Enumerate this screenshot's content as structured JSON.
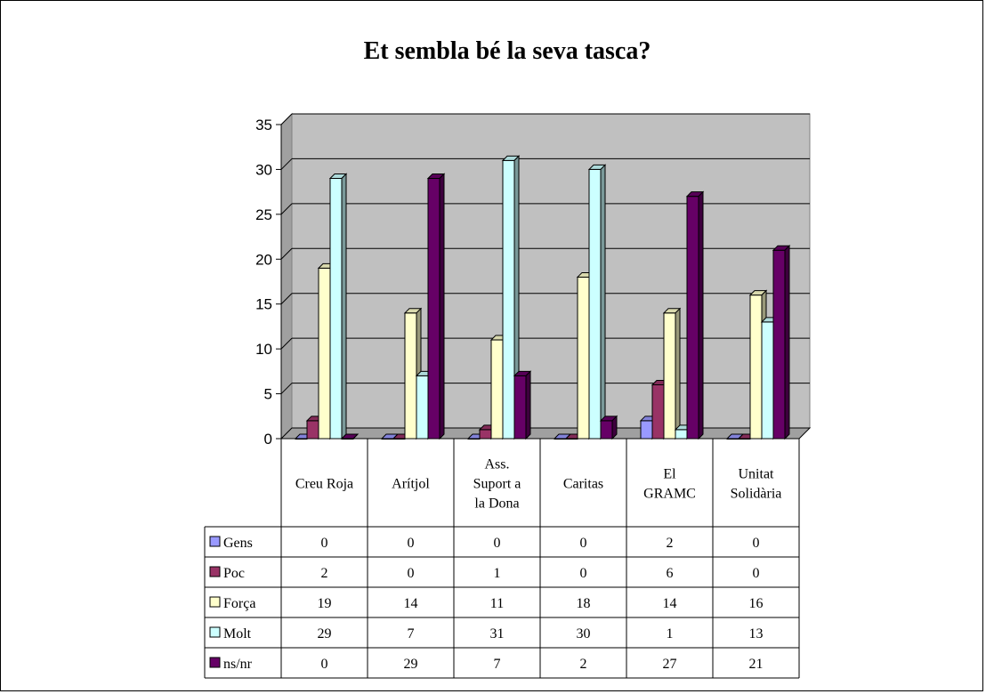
{
  "chart_data": {
    "type": "bar",
    "title": "Et sembla bé la seva tasca?",
    "categories": [
      "Creu Roja",
      "Arítjol",
      "Ass. Suport a la Dona",
      "Caritas",
      "El GRAMC",
      "Unitat Solidària"
    ],
    "category_lines": [
      [
        "Creu Roja"
      ],
      [
        "Arítjol"
      ],
      [
        "Ass.",
        "Suport a",
        "la Dona"
      ],
      [
        "Caritas"
      ],
      [
        "El",
        "GRAMC"
      ],
      [
        "Unitat",
        "Solidària"
      ]
    ],
    "series": [
      {
        "name": "Gens",
        "color": "#9999ff",
        "values": [
          0,
          0,
          0,
          0,
          2,
          0
        ]
      },
      {
        "name": "Poc",
        "color": "#993366",
        "values": [
          2,
          0,
          1,
          0,
          6,
          0
        ]
      },
      {
        "name": "Força",
        "color": "#ffffcc",
        "values": [
          19,
          14,
          11,
          18,
          14,
          16
        ]
      },
      {
        "name": "Molt",
        "color": "#ccffff",
        "values": [
          29,
          7,
          31,
          30,
          1,
          13
        ]
      },
      {
        "name": "ns/nr",
        "color": "#660066",
        "values": [
          0,
          29,
          7,
          2,
          27,
          21
        ]
      }
    ],
    "y_ticks": [
      "0",
      "5",
      "10",
      "15",
      "20",
      "25",
      "30",
      "35"
    ],
    "ylim": [
      0,
      35
    ],
    "plot_background": "#c0c0c0",
    "grid": true,
    "legend": "data-table",
    "xlabel": "",
    "ylabel": ""
  }
}
